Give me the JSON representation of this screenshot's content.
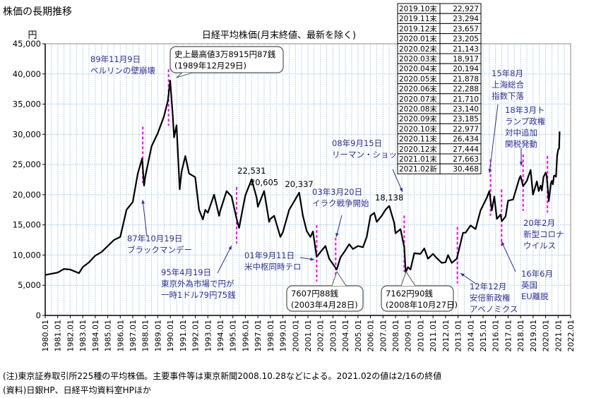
{
  "page_title": "株価の長期推移",
  "notes": [
    "(注)東京証券取引所225種の平均株価。主要事件等は東京新聞2008.10.28などによる。2021.02の値は2/16の終値",
    "(資料)日銀HP、日経平均資料室HPほか"
  ],
  "colors": {
    "line": "#000000",
    "event": "#ff00ff",
    "annotation": "#2e3192",
    "grid": "#b8d4f0"
  },
  "table": [
    [
      "2019.10末",
      "22,927"
    ],
    [
      "2019.11末",
      "23,294"
    ],
    [
      "2019.12末",
      "23,657"
    ],
    [
      "2020.01末",
      "23,205"
    ],
    [
      "2020.02末",
      "21,143"
    ],
    [
      "2020.03末",
      "18,917"
    ],
    [
      "2020.04末",
      "20,194"
    ],
    [
      "2020.05末",
      "21,878"
    ],
    [
      "2020.06末",
      "22,288"
    ],
    [
      "2020.07末",
      "21,710"
    ],
    [
      "2020.08末",
      "23,140"
    ],
    [
      "2020.09末",
      "23,185"
    ],
    [
      "2020.10末",
      "22,977"
    ],
    [
      "2020.11末",
      "26,434"
    ],
    [
      "2020.12末",
      "27,444"
    ],
    [
      "2021.01末",
      "27,663"
    ],
    [
      "2021.02新",
      "30,468"
    ]
  ],
  "chart_data": {
    "type": "line",
    "title": "日経平均株価(月末終値、最新を除く)",
    "ylabel": "円",
    "xlabel": "",
    "ylim": [
      0,
      45000
    ],
    "xlim": [
      1980,
      2022
    ],
    "yticks": [
      "0",
      "5,000",
      "10,000",
      "15,000",
      "20,000",
      "25,000",
      "30,000",
      "35,000",
      "40,000",
      "45,000"
    ],
    "xticks": [
      "1980.01",
      "1981.01",
      "1982.01",
      "1983.01",
      "1984.01",
      "1985.01",
      "1986.01",
      "1987.01",
      "1988.01",
      "1989.01",
      "1990.01",
      "1991.01",
      "1992.01",
      "1993.01",
      "1994.01",
      "1995.01",
      "1996.01",
      "1997.01",
      "1998.01",
      "1999.01",
      "2000.01",
      "2001.01",
      "2002.01",
      "2003.01",
      "2004.01",
      "2005.01",
      "2006.01",
      "2007.01",
      "2008.01",
      "2009.01",
      "2010.01",
      "2011.01",
      "2012.01",
      "2013.01",
      "2014.01",
      "2015.01",
      "2016.01",
      "2017.01",
      "2018.01",
      "2019.01",
      "2020.01",
      "2021.01",
      "2022.01"
    ],
    "grid": true,
    "series": [
      {
        "name": "日経平均株価",
        "points": [
          [
            1980.0,
            6700
          ],
          [
            1980.5,
            6900
          ],
          [
            1981.0,
            7100
          ],
          [
            1981.5,
            7700
          ],
          [
            1982.0,
            7600
          ],
          [
            1982.7,
            7000
          ],
          [
            1983.0,
            8000
          ],
          [
            1983.5,
            8800
          ],
          [
            1984.0,
            9900
          ],
          [
            1984.5,
            10500
          ],
          [
            1985.0,
            11500
          ],
          [
            1985.5,
            12500
          ],
          [
            1986.0,
            13000
          ],
          [
            1986.5,
            17500
          ],
          [
            1987.0,
            18800
          ],
          [
            1987.4,
            23500
          ],
          [
            1987.75,
            26000
          ],
          [
            1987.9,
            21500
          ],
          [
            1988.0,
            23000
          ],
          [
            1988.5,
            28000
          ],
          [
            1989.0,
            30200
          ],
          [
            1989.5,
            33000
          ],
          [
            1989.8,
            35500
          ],
          [
            1989.99,
            38916
          ],
          [
            1990.2,
            33000
          ],
          [
            1990.3,
            29500
          ],
          [
            1990.5,
            31500
          ],
          [
            1990.75,
            20900
          ],
          [
            1990.9,
            23800
          ],
          [
            1991.2,
            26400
          ],
          [
            1991.5,
            23500
          ],
          [
            1991.99,
            22900
          ],
          [
            1992.3,
            17500
          ],
          [
            1992.6,
            15900
          ],
          [
            1992.8,
            17500
          ],
          [
            1993.0,
            17000
          ],
          [
            1993.5,
            20000
          ],
          [
            1993.9,
            16500
          ],
          [
            1994.0,
            17400
          ],
          [
            1994.5,
            20600
          ],
          [
            1994.9,
            19700
          ],
          [
            1995.3,
            16000
          ],
          [
            1995.5,
            14500
          ],
          [
            1995.8,
            17800
          ],
          [
            1996.0,
            19900
          ],
          [
            1996.5,
            22531
          ],
          [
            1996.9,
            19500
          ],
          [
            1997.0,
            18000
          ],
          [
            1997.5,
            20605
          ],
          [
            1997.9,
            15500
          ],
          [
            1998.0,
            16000
          ],
          [
            1998.3,
            16500
          ],
          [
            1998.8,
            13000
          ],
          [
            1999.0,
            13800
          ],
          [
            1999.5,
            17500
          ],
          [
            1999.9,
            18900
          ],
          [
            2000.3,
            20337
          ],
          [
            2000.6,
            16500
          ],
          [
            2000.9,
            14000
          ],
          [
            2001.2,
            13000
          ],
          [
            2001.4,
            13900
          ],
          [
            2001.7,
            9700
          ],
          [
            2002.0,
            10500
          ],
          [
            2002.4,
            11500
          ],
          [
            2002.7,
            9400
          ],
          [
            2003.0,
            8500
          ],
          [
            2003.3,
            7608
          ],
          [
            2003.6,
            9600
          ],
          [
            2003.9,
            10500
          ],
          [
            2004.3,
            11800
          ],
          [
            2004.6,
            11000
          ],
          [
            2005.0,
            11500
          ],
          [
            2005.4,
            11300
          ],
          [
            2005.7,
            13000
          ],
          [
            2006.0,
            16500
          ],
          [
            2006.3,
            17000
          ],
          [
            2006.5,
            15500
          ],
          [
            2006.9,
            16500
          ],
          [
            2007.2,
            17500
          ],
          [
            2007.5,
            18138
          ],
          [
            2007.9,
            15300
          ],
          [
            2008.0,
            13600
          ],
          [
            2008.4,
            14300
          ],
          [
            2008.7,
            11300
          ],
          [
            2008.82,
            7162
          ],
          [
            2009.0,
            8000
          ],
          [
            2009.2,
            7600
          ],
          [
            2009.5,
            10300
          ],
          [
            2010.0,
            10200
          ],
          [
            2010.3,
            11100
          ],
          [
            2010.6,
            9400
          ],
          [
            2011.0,
            10200
          ],
          [
            2011.2,
            9700
          ],
          [
            2011.7,
            8700
          ],
          [
            2012.0,
            8800
          ],
          [
            2012.2,
            10000
          ],
          [
            2012.5,
            8700
          ],
          [
            2012.9,
            9400
          ],
          [
            2013.1,
            11100
          ],
          [
            2013.4,
            13700
          ],
          [
            2013.6,
            13700
          ],
          [
            2014.0,
            14900
          ],
          [
            2014.4,
            14300
          ],
          [
            2014.8,
            17400
          ],
          [
            2015.3,
            19500
          ],
          [
            2015.5,
            20600
          ],
          [
            2015.7,
            17400
          ],
          [
            2015.9,
            19700
          ],
          [
            2016.1,
            16000
          ],
          [
            2016.4,
            16700
          ],
          [
            2016.5,
            15600
          ],
          [
            2016.8,
            16400
          ],
          [
            2017.0,
            19000
          ],
          [
            2017.4,
            19200
          ],
          [
            2017.9,
            22700
          ],
          [
            2018.0,
            23100
          ],
          [
            2018.2,
            21400
          ],
          [
            2018.5,
            22300
          ],
          [
            2018.8,
            24100
          ],
          [
            2018.99,
            20000
          ],
          [
            2019.3,
            22200
          ],
          [
            2019.45,
            20600
          ],
          [
            2019.6,
            21500
          ],
          [
            2019.7,
            20700
          ],
          [
            2019.83,
            22927
          ],
          [
            2019.92,
            23294
          ],
          [
            2020.0,
            23657
          ],
          [
            2020.08,
            23205
          ],
          [
            2020.17,
            21143
          ],
          [
            2020.25,
            18917
          ],
          [
            2020.33,
            20194
          ],
          [
            2020.42,
            21878
          ],
          [
            2020.5,
            22288
          ],
          [
            2020.58,
            21710
          ],
          [
            2020.67,
            23140
          ],
          [
            2020.75,
            23185
          ],
          [
            2020.83,
            22977
          ],
          [
            2020.92,
            26434
          ],
          [
            2021.0,
            27444
          ],
          [
            2021.08,
            27663
          ],
          [
            2021.12,
            30468
          ]
        ]
      }
    ],
    "peak_labels": [
      {
        "year": 1996.5,
        "value": 22531,
        "label": "22,531"
      },
      {
        "year": 1997.5,
        "value": 20605,
        "label": "20,605"
      },
      {
        "year": 2000.3,
        "value": 20337,
        "label": "20,337"
      },
      {
        "year": 2007.5,
        "value": 18138,
        "label": "18,138"
      }
    ],
    "callouts": {
      "high": [
        "史上最高値3万8915円87銭",
        "(1989年12月29日)"
      ],
      "low2003": [
        "7607円88銭",
        "(2003年4月28日)"
      ],
      "low2008": [
        "7162円90銭",
        "(2008年10月27日)"
      ]
    },
    "events": [
      {
        "year": 1987.8,
        "lines": [
          "87年10月19日",
          "ブラックマンデー"
        ]
      },
      {
        "year": 1989.86,
        "lines": [
          "89年11月9日",
          "ベルリンの壁崩壊"
        ]
      },
      {
        "year": 1995.3,
        "lines": [
          "95年4月19日",
          "東京外為市場で円が",
          "一時1ドル79円75銭"
        ]
      },
      {
        "year": 2001.7,
        "lines": [
          "01年9月11日",
          "米中枢同時テロ"
        ]
      },
      {
        "year": 2003.22,
        "lines": [
          "03年3月20日",
          "イラク戦争開始"
        ]
      },
      {
        "year": 2008.7,
        "lines": [
          "08年9月15日",
          "リーマン・ショック"
        ]
      },
      {
        "year": 2012.95,
        "lines": [
          "12年12月",
          "安倍新政権",
          "アベノミクス"
        ]
      },
      {
        "year": 2015.6,
        "lines": [
          "15年8月",
          "上海総合",
          "指数下落"
        ]
      },
      {
        "year": 2016.48,
        "lines": [
          "16年6月",
          "英国",
          "EU離脱"
        ]
      },
      {
        "year": 2018.2,
        "lines": [
          "18年3月ト",
          "ランプ政権",
          "対中追加",
          "関税発動"
        ]
      },
      {
        "year": 2020.15,
        "lines": [
          "20年2月",
          "新型コロナ",
          "ウイルス"
        ]
      }
    ]
  }
}
